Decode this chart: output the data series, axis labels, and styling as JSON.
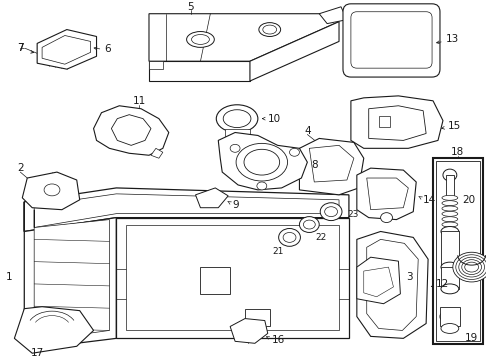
{
  "bg_color": "#ffffff",
  "line_color": "#1a1a1a",
  "fig_width": 4.89,
  "fig_height": 3.6,
  "dpi": 100,
  "label_fs": 7.5,
  "label_color": "#1a1a1a"
}
